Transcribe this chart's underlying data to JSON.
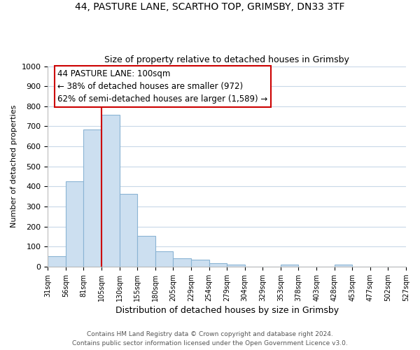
{
  "title_line1": "44, PASTURE LANE, SCARTHO TOP, GRIMSBY, DN33 3TF",
  "title_line2": "Size of property relative to detached houses in Grimsby",
  "bar_values": [
    52,
    425,
    685,
    757,
    362,
    153,
    76,
    40,
    33,
    17,
    10,
    0,
    0,
    10,
    0,
    0,
    10,
    0,
    0,
    0
  ],
  "bar_labels": [
    "31sqm",
    "56sqm",
    "81sqm",
    "105sqm",
    "130sqm",
    "155sqm",
    "180sqm",
    "205sqm",
    "229sqm",
    "254sqm",
    "279sqm",
    "304sqm",
    "329sqm",
    "353sqm",
    "378sqm",
    "403sqm",
    "428sqm",
    "453sqm",
    "477sqm",
    "502sqm",
    "527sqm"
  ],
  "bar_color": "#ccdff0",
  "bar_edge_color": "#8ab4d4",
  "vline_color": "#cc0000",
  "vline_x_index": 3,
  "annotation_title": "44 PASTURE LANE: 100sqm",
  "annotation_line1": "← 38% of detached houses are smaller (972)",
  "annotation_line2": "62% of semi-detached houses are larger (1,589) →",
  "annotation_box_color": "#ffffff",
  "annotation_box_edge": "#cc0000",
  "xlabel": "Distribution of detached houses by size in Grimsby",
  "ylabel": "Number of detached properties",
  "ylim": [
    0,
    1000
  ],
  "yticks": [
    0,
    100,
    200,
    300,
    400,
    500,
    600,
    700,
    800,
    900,
    1000
  ],
  "footer_line1": "Contains HM Land Registry data © Crown copyright and database right 2024.",
  "footer_line2": "Contains public sector information licensed under the Open Government Licence v3.0.",
  "bg_color": "#ffffff",
  "grid_color": "#c8d8e8"
}
